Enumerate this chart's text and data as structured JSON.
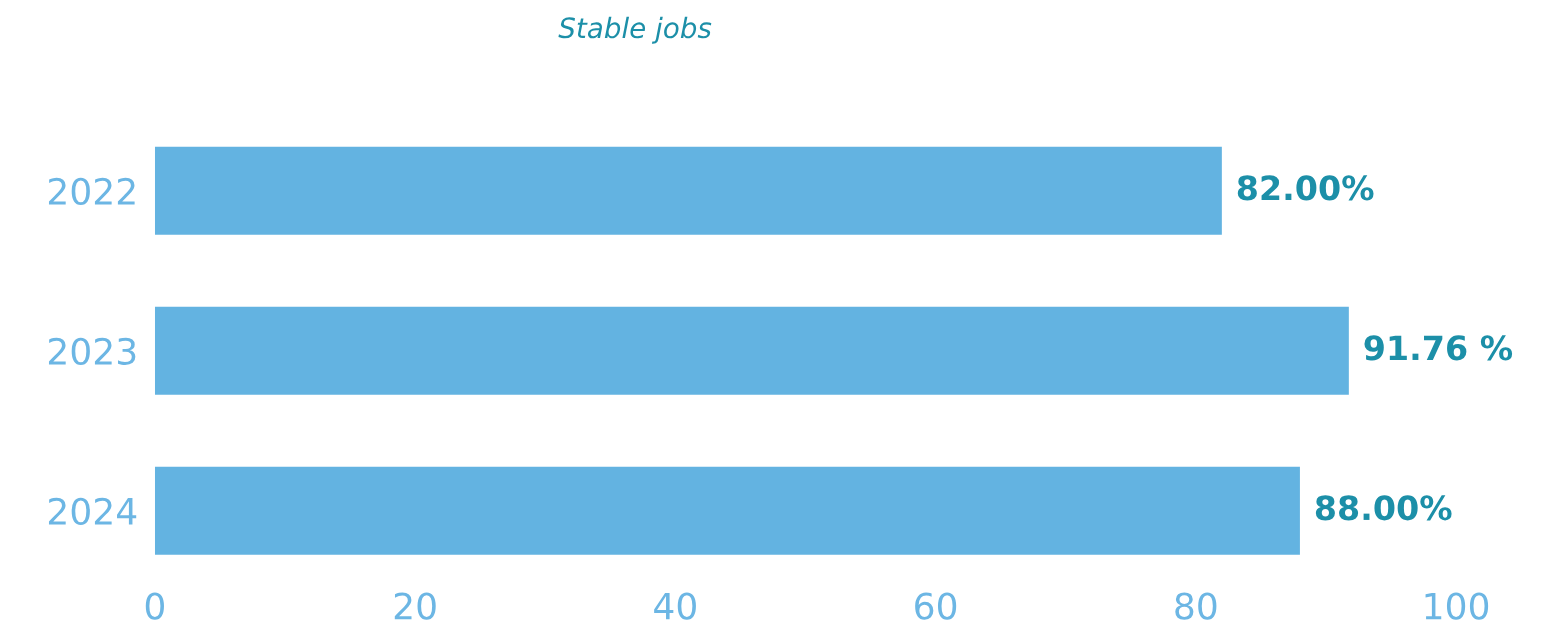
{
  "chart_data": {
    "type": "bar",
    "orientation": "horizontal",
    "title": "Stable jobs",
    "categories": [
      "2022",
      "2023",
      "2024"
    ],
    "values": [
      82,
      91.76,
      88
    ],
    "value_labels": [
      "82.00%",
      "91.76 %",
      "88.00%"
    ],
    "color": "#63b3e1",
    "xlim": [
      0,
      100
    ],
    "xticks": [
      0,
      20,
      40,
      60,
      80,
      100
    ],
    "grid": false
  }
}
